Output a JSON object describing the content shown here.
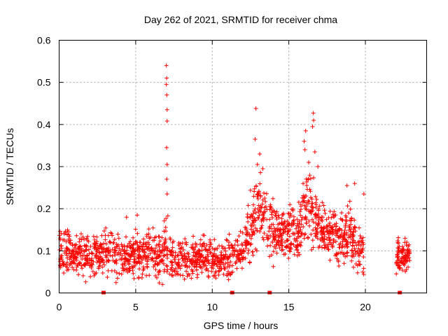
{
  "chart_data": {
    "type": "scatter",
    "title": "Day 262 of 2021, SRMTID for receiver chma",
    "xlabel": "GPS time / hours",
    "ylabel": "SRMTID / TECUs",
    "xlim": [
      0,
      24
    ],
    "ylim": [
      0,
      0.6
    ],
    "xticks": [
      0,
      5,
      10,
      15,
      20
    ],
    "xtick_labels": [
      "0",
      "5",
      "10",
      "15",
      "20"
    ],
    "yticks": [
      0,
      0.1,
      0.2,
      0.3,
      0.4,
      0.5,
      0.6
    ],
    "ytick_labels": [
      "0",
      "0.1",
      "0.2",
      "0.3",
      "0.4",
      "0.5",
      "0.6"
    ],
    "grid": true,
    "marker": "plus",
    "color": "#ff0000",
    "gap_markers_x": [
      2.9,
      11.3,
      13.75,
      22.25
    ],
    "spike_points": [
      [
        7.0,
        0.54
      ],
      [
        7.02,
        0.51
      ],
      [
        7.0,
        0.495
      ],
      [
        7.03,
        0.47
      ],
      [
        7.05,
        0.435
      ],
      [
        7.05,
        0.408
      ],
      [
        7.02,
        0.345
      ],
      [
        7.05,
        0.305
      ],
      [
        7.03,
        0.27
      ],
      [
        7.05,
        0.235
      ],
      [
        7.1,
        0.183
      ],
      [
        12.85,
        0.438
      ],
      [
        16.6,
        0.427
      ],
      [
        16.62,
        0.41
      ],
      [
        16.55,
        0.395
      ],
      [
        16.1,
        0.385
      ],
      [
        16.0,
        0.36
      ],
      [
        16.05,
        0.34
      ],
      [
        12.8,
        0.365
      ],
      [
        13.1,
        0.33
      ],
      [
        12.95,
        0.305
      ],
      [
        13.3,
        0.295
      ],
      [
        16.7,
        0.335
      ],
      [
        16.3,
        0.31
      ],
      [
        16.9,
        0.3
      ],
      [
        5.1,
        0.185
      ],
      [
        4.4,
        0.18
      ],
      [
        19.3,
        0.26
      ],
      [
        19.9,
        0.235
      ],
      [
        18.8,
        0.255
      ]
    ],
    "envelope": [
      [
        0.0,
        0.09,
        0.035
      ],
      [
        1.0,
        0.09,
        0.035
      ],
      [
        2.0,
        0.09,
        0.035
      ],
      [
        3.0,
        0.095,
        0.035
      ],
      [
        4.0,
        0.09,
        0.035
      ],
      [
        5.0,
        0.09,
        0.035
      ],
      [
        6.0,
        0.09,
        0.035
      ],
      [
        6.5,
        0.095,
        0.04
      ],
      [
        7.0,
        0.1,
        0.045
      ],
      [
        7.5,
        0.085,
        0.035
      ],
      [
        8.0,
        0.08,
        0.03
      ],
      [
        9.0,
        0.085,
        0.03
      ],
      [
        10.0,
        0.085,
        0.03
      ],
      [
        10.5,
        0.075,
        0.025
      ],
      [
        11.0,
        0.08,
        0.03
      ],
      [
        12.0,
        0.1,
        0.035
      ],
      [
        12.5,
        0.16,
        0.05
      ],
      [
        13.0,
        0.2,
        0.06
      ],
      [
        13.5,
        0.18,
        0.05
      ],
      [
        14.0,
        0.14,
        0.045
      ],
      [
        14.5,
        0.13,
        0.04
      ],
      [
        15.0,
        0.14,
        0.045
      ],
      [
        15.5,
        0.15,
        0.05
      ],
      [
        16.0,
        0.19,
        0.06
      ],
      [
        16.5,
        0.2,
        0.06
      ],
      [
        17.0,
        0.16,
        0.05
      ],
      [
        17.5,
        0.14,
        0.045
      ],
      [
        18.0,
        0.14,
        0.04
      ],
      [
        18.5,
        0.13,
        0.04
      ],
      [
        19.0,
        0.14,
        0.045
      ],
      [
        19.5,
        0.1,
        0.035
      ],
      [
        19.9,
        0.09,
        0.03
      ]
    ],
    "late_segment": {
      "x_range": [
        22.0,
        22.9
      ],
      "center": 0.09,
      "spread": 0.025
    }
  }
}
